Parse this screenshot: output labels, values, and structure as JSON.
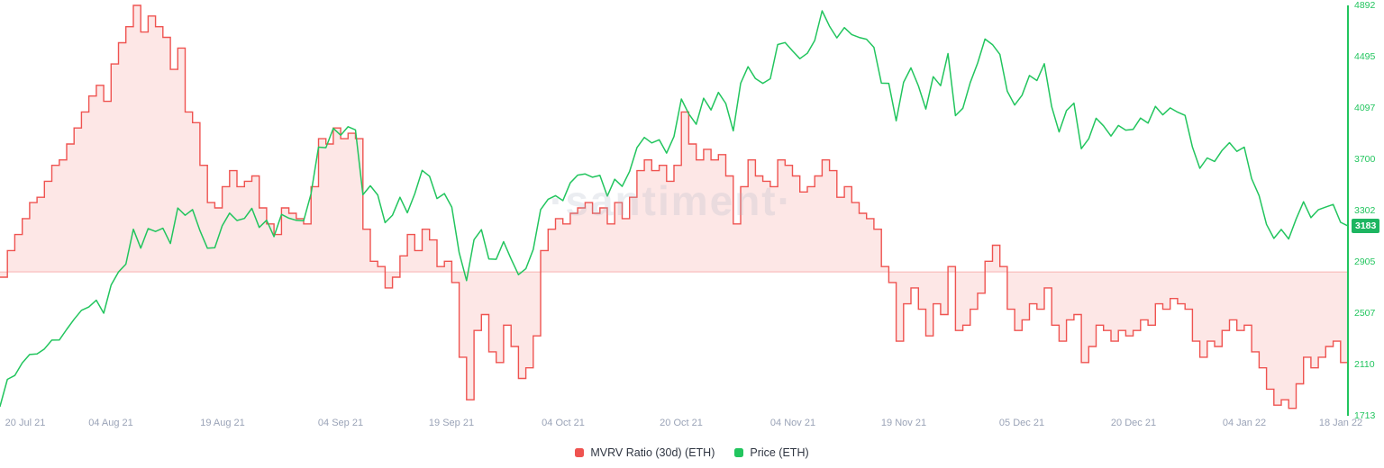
{
  "watermark": "·santiment·",
  "price_badge": "3183",
  "legend": {
    "mvrv": "MVRV Ratio (30d) (ETH)",
    "price": "Price (ETH)"
  },
  "colors": {
    "mvrv_line": "#ef5350",
    "mvrv_fill": "rgba(239,83,80,0.14)",
    "mvrv_baseline": "rgba(239,83,80,0.40)",
    "price_line": "#22c55e",
    "axis_label_green": "#22c55e",
    "x_label_gray": "#9aa3b7",
    "badge_bg": "#1db561"
  },
  "chart_data": {
    "type": "line",
    "title": "",
    "legend_position": "bottom",
    "grid": false,
    "days_total": 182,
    "last_price": 3183,
    "y_ticks": [
      4892,
      4495,
      4097,
      3700,
      3302,
      2905,
      2507,
      2110,
      1713
    ],
    "price_axis": {
      "min": 1713,
      "max": 4892
    },
    "mvrv_axis": {
      "min": -13.5,
      "max": 25,
      "baseline": 0
    },
    "x_ticks": [
      {
        "label": "20 Jul 21",
        "day": 0
      },
      {
        "label": "04 Aug 21",
        "day": 15
      },
      {
        "label": "19 Aug 21",
        "day": 30
      },
      {
        "label": "04 Sep 21",
        "day": 46
      },
      {
        "label": "19 Sep 21",
        "day": 61
      },
      {
        "label": "04 Oct 21",
        "day": 76
      },
      {
        "label": "20 Oct 21",
        "day": 92
      },
      {
        "label": "04 Nov 21",
        "day": 107
      },
      {
        "label": "19 Nov 21",
        "day": 122
      },
      {
        "label": "05 Dec 21",
        "day": 138
      },
      {
        "label": "20 Dec 21",
        "day": 153
      },
      {
        "label": "04 Jan 22",
        "day": 168
      },
      {
        "label": "18 Jan 22",
        "day": 182
      }
    ],
    "series": [
      {
        "name": "MVRV Ratio (30d) (ETH)",
        "type": "step-area",
        "color": "#ef5350",
        "values": [
          -0.5,
          2.0,
          3.5,
          5.0,
          6.5,
          7.0,
          8.5,
          10.0,
          10.5,
          12.0,
          13.5,
          15.0,
          16.5,
          17.5,
          16.0,
          19.5,
          21.5,
          23.0,
          25.0,
          22.5,
          24.0,
          23.0,
          22.0,
          19.0,
          21.0,
          15.0,
          14.0,
          10.0,
          6.5,
          6.0,
          8.0,
          9.5,
          8.0,
          8.5,
          9.0,
          6.0,
          4.5,
          3.5,
          6.0,
          5.5,
          5.0,
          4.5,
          8.0,
          12.5,
          12.0,
          13.5,
          12.5,
          13.0,
          12.5,
          4.0,
          1.0,
          0.5,
          -1.5,
          -0.5,
          1.5,
          3.5,
          2.0,
          4.0,
          3.0,
          0.5,
          1.0,
          -1.0,
          -8.0,
          -12.0,
          -5.5,
          -4.0,
          -7.5,
          -8.5,
          -5.0,
          -7.0,
          -10.0,
          -9.0,
          -6.0,
          2.0,
          4.0,
          5.0,
          4.5,
          5.5,
          6.0,
          6.5,
          5.5,
          6.0,
          4.5,
          6.5,
          5.0,
          7.0,
          9.5,
          10.5,
          9.5,
          10.0,
          8.5,
          10.0,
          15.0,
          12.0,
          10.5,
          11.5,
          10.5,
          11.0,
          9.0,
          4.5,
          8.0,
          10.5,
          9.0,
          8.5,
          8.0,
          10.5,
          10.0,
          9.0,
          7.5,
          8.0,
          9.0,
          10.5,
          9.5,
          7.0,
          8.0,
          6.5,
          5.5,
          5.0,
          4.0,
          0.5,
          -1.0,
          -6.5,
          -3.0,
          -1.5,
          -3.5,
          -6.0,
          -3.0,
          -4.0,
          0.5,
          -5.5,
          -5.0,
          -3.5,
          -2.0,
          1.0,
          2.5,
          0.5,
          -3.5,
          -5.5,
          -4.5,
          -3.0,
          -3.5,
          -1.5,
          -5.0,
          -6.5,
          -4.5,
          -4.0,
          -8.5,
          -7.0,
          -5.0,
          -5.5,
          -6.5,
          -5.5,
          -6.0,
          -5.5,
          -4.5,
          -5.0,
          -3.0,
          -3.5,
          -2.5,
          -3.0,
          -3.5,
          -6.5,
          -8.0,
          -6.5,
          -7.0,
          -5.5,
          -4.5,
          -5.5,
          -5.0,
          -7.5,
          -9.0,
          -11.0,
          -12.5,
          -12.0,
          -12.8,
          -10.5,
          -8.0,
          -9.0,
          -8.0,
          -7.0,
          -6.5,
          -8.5,
          -7.0
        ]
      },
      {
        "name": "Price (ETH)",
        "type": "line",
        "color": "#22c55e",
        "values": [
          1786,
          1995,
          2025,
          2122,
          2188,
          2192,
          2231,
          2299,
          2300,
          2382,
          2460,
          2530,
          2556,
          2608,
          2508,
          2725,
          2827,
          2888,
          3158,
          3012,
          3163,
          3141,
          3166,
          3047,
          3323,
          3266,
          3310,
          3148,
          3011,
          3015,
          3185,
          3283,
          3226,
          3242,
          3320,
          3172,
          3228,
          3101,
          3273,
          3244,
          3227,
          3224,
          3433,
          3794,
          3790,
          3940,
          3887,
          3952,
          3928,
          3425,
          3495,
          3424,
          3209,
          3267,
          3406,
          3286,
          3432,
          3614,
          3569,
          3396,
          3434,
          3330,
          2977,
          2760,
          3077,
          3155,
          2928,
          2925,
          3062,
          2928,
          2806,
          2852,
          3001,
          3310,
          3390,
          3418,
          3380,
          3517,
          3577,
          3586,
          3561,
          3575,
          3415,
          3545,
          3490,
          3605,
          3790,
          3869,
          3827,
          3851,
          3748,
          3876,
          4167,
          4052,
          3971,
          4173,
          4082,
          4218,
          4132,
          3920,
          4288,
          4417,
          4325,
          4288,
          4324,
          4589,
          4604,
          4540,
          4479,
          4521,
          4620,
          4850,
          4731,
          4640,
          4720,
          4666,
          4644,
          4630,
          4567,
          4290,
          4288,
          3998,
          4296,
          4408,
          4268,
          4089,
          4340,
          4270,
          4519,
          4038,
          4095,
          4294,
          4445,
          4631,
          4588,
          4513,
          4227,
          4120,
          4196,
          4349,
          4310,
          4440,
          4107,
          3912,
          4077,
          4135,
          3782,
          3859,
          4018,
          3959,
          3880,
          3962,
          3926,
          3932,
          4019,
          3980,
          4110,
          4044,
          4098,
          4065,
          4040,
          3795,
          3630,
          3710,
          3683,
          3769,
          3829,
          3761,
          3794,
          3550,
          3418,
          3196,
          3087,
          3157,
          3083,
          3238,
          3371,
          3248,
          3309,
          3330,
          3350,
          3212,
          3183
        ]
      }
    ]
  }
}
